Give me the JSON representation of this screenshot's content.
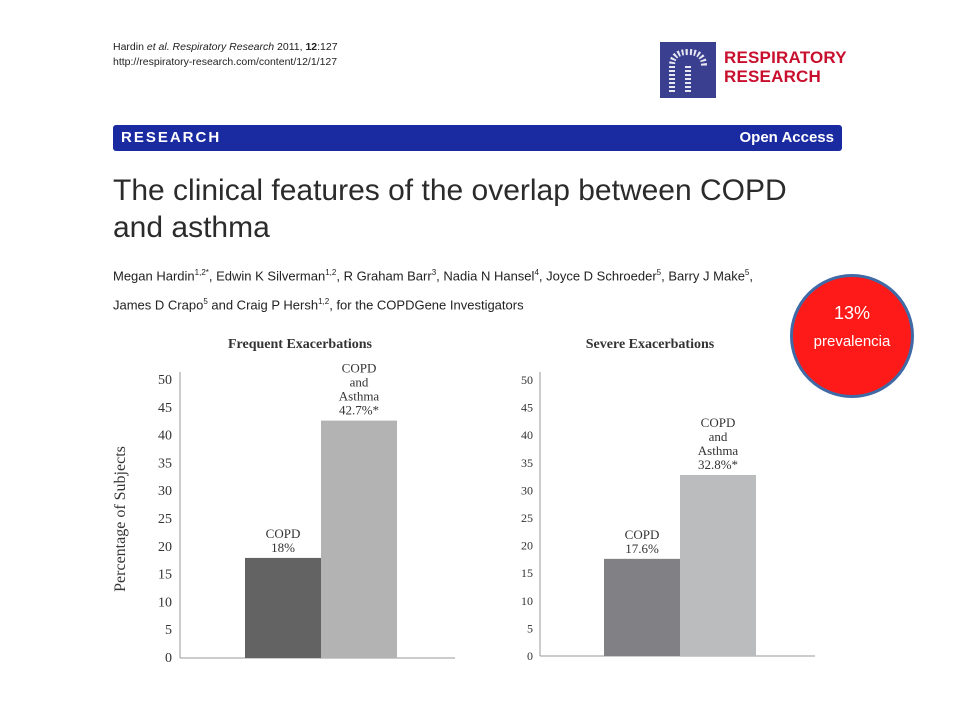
{
  "citation": {
    "authors": "Hardin ",
    "etal": "et al.",
    "journal": " Respiratory Research",
    "year_volume": " 2011, ",
    "volume": "12",
    "article": ":127",
    "url": "http://respiratory-research.com/content/12/1/127"
  },
  "logo": {
    "line1": "RESPIRATORY",
    "line2": "RESEARCH"
  },
  "banner": {
    "left_label": "RESEARCH",
    "right_label": "Open Access"
  },
  "article_title": "The clinical features of the overlap between COPD and asthma",
  "authors_line1": [
    {
      "name": "Megan Hardin",
      "sup": "1,2*"
    },
    {
      "name": ", Edwin K Silverman",
      "sup": "1,2"
    },
    {
      "name": ", R Graham Barr",
      "sup": "3"
    },
    {
      "name": ", Nadia N Hansel",
      "sup": "4"
    },
    {
      "name": ", Joyce D Schroeder",
      "sup": "5"
    },
    {
      "name": ", Barry J Make",
      "sup": "5"
    },
    {
      "name": ",",
      "sup": ""
    }
  ],
  "authors_line2": [
    {
      "name": "James D Crapo",
      "sup": "5"
    },
    {
      "name": " and Craig P Hersh",
      "sup": "1,2"
    },
    {
      "name": ", for the COPDGene Investigators",
      "sup": ""
    }
  ],
  "badge": {
    "percent": "13%",
    "label": "prevalencia"
  },
  "chart_data": [
    {
      "type": "bar",
      "title": "Frequent Exacerbations",
      "ylabel": "Percentage of Subjects",
      "ylim": [
        0,
        50
      ],
      "yticks": [
        0,
        5,
        10,
        15,
        20,
        25,
        30,
        35,
        40,
        45,
        50
      ],
      "categories": [
        "COPD",
        "COPD and Asthma"
      ],
      "values": [
        18,
        42.7
      ],
      "bar_labels": [
        [
          "COPD",
          "18%"
        ],
        [
          "COPD",
          "and",
          "Asthma",
          "42.7%*"
        ]
      ],
      "colors": [
        "#636363",
        "#b3b3b3"
      ]
    },
    {
      "type": "bar",
      "title": "Severe Exacerbations",
      "ylim": [
        0,
        50
      ],
      "yticks": [
        0,
        5,
        10,
        15,
        20,
        25,
        30,
        35,
        40,
        45,
        50
      ],
      "categories": [
        "COPD",
        "COPD and Asthma"
      ],
      "values": [
        17.6,
        32.8
      ],
      "bar_labels": [
        [
          "COPD",
          "17.6%"
        ],
        [
          "COPD",
          "and",
          "Asthma",
          "32.8%*"
        ]
      ],
      "colors": [
        "#808085",
        "#bbbcbe"
      ]
    }
  ]
}
